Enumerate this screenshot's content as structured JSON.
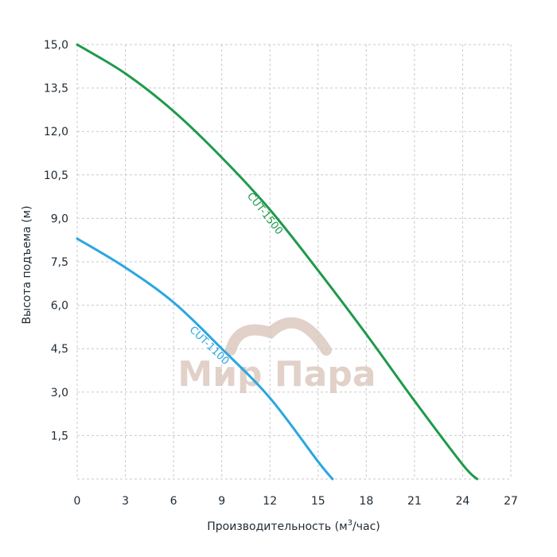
{
  "chart_data": {
    "type": "line",
    "xlabel": "Производительность (м",
    "xlabel_sup": "3",
    "xlabel_tail": "/час)",
    "ylabel": "Высота подъема (м)",
    "xlim": [
      0,
      27
    ],
    "ylim": [
      0,
      15
    ],
    "x_ticks": [
      0,
      3,
      6,
      9,
      12,
      15,
      18,
      21,
      24,
      27
    ],
    "x_tick_labels": [
      "0",
      "3",
      "6",
      "9",
      "12",
      "15",
      "18",
      "21",
      "24",
      "27"
    ],
    "y_ticks": [
      1.5,
      3,
      4.5,
      6,
      7.5,
      9,
      10.5,
      12,
      13.5,
      15
    ],
    "y_tick_labels": [
      "1,5",
      "3,0",
      "4,5",
      "6,0",
      "7,5",
      "9,0",
      "10,5",
      "12,0",
      "13,5",
      "15,0"
    ],
    "grid": true,
    "series": [
      {
        "name": "CUT-1500",
        "color": "#1e9a4a",
        "x": [
          0,
          3,
          6,
          9,
          12,
          15,
          18,
          21,
          24,
          24.9
        ],
        "y": [
          15.0,
          14.0,
          12.7,
          11.1,
          9.3,
          7.2,
          5.0,
          2.7,
          0.5,
          0.0
        ],
        "label_at_x": 12.0
      },
      {
        "name": "CUT-1100",
        "color": "#2aa7e0",
        "x": [
          0,
          3,
          6,
          9,
          12,
          15,
          15.9
        ],
        "y": [
          8.3,
          7.3,
          6.1,
          4.5,
          2.8,
          0.6,
          0.0
        ],
        "label_at_x": 8.5
      }
    ]
  },
  "watermark": {
    "text": "Мир Пара",
    "color": "#d7c2b8"
  }
}
